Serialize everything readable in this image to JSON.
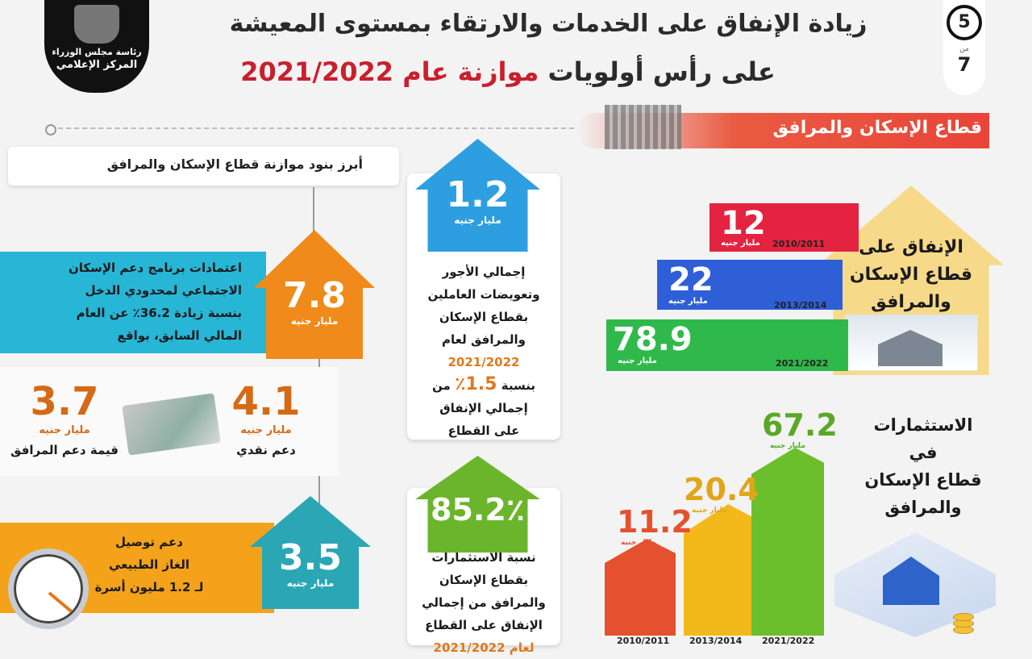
{
  "header": {
    "logo_line1": "رئاسة مجلس الوزراء",
    "logo_line2": "المركز الإعلامي",
    "title_line1": "زيادة الإنفاق على الخدمات والارتقاء بمستوى المعيشة",
    "title_line2_dark": "على رأس أولويات",
    "title_line2_red": "موازنة عام 2021/2022",
    "page_current": "5",
    "page_of": "من",
    "page_total": "7"
  },
  "sector": {
    "title": "قطاع الإسكان والمرافق"
  },
  "left_panel": {
    "heading": "أبرز بنود موازنة قطاع الإسكان والمرافق",
    "social_housing": {
      "value": "7.8",
      "unit": "مليار جنيه",
      "text_line1": "اعتمادات برنامج دعم الإسكان",
      "text_line2": "الاجتماعي لمحدودي الدخل",
      "text_line3": "بنسبة زيادة 36.2٪ عن العام",
      "text_line4": "المالي السابق، بواقع"
    },
    "cash_support": {
      "value": "4.1",
      "unit": "مليار جنيه",
      "caption": "دعم نقدي"
    },
    "utilities_support": {
      "value": "3.7",
      "unit": "مليار جنيه",
      "caption": "قيمة دعم المرافق"
    },
    "gas": {
      "value": "3.5",
      "unit": "مليار جنيه",
      "text_line1": "دعم توصيل",
      "text_line2": "الغاز الطبيعي",
      "text_line3": "لـ 1.2 مليون أسرة"
    }
  },
  "middle": {
    "wages": {
      "value": "1.2",
      "unit": "مليار جنيه",
      "line1": "إجمالي الأجور",
      "line2": "وتعويضات العاملين",
      "line3": "بقطاع الإسكان",
      "line4": "والمرافق لعام",
      "line5": "2021/2022",
      "line6_pre": "بنسبة",
      "line6_num": "1.5٪",
      "line6_post": "من",
      "line7": "إجمالي الإنفاق",
      "line8": "على القطاع"
    },
    "investments_share": {
      "value": "85.2٪",
      "line1": "نسبة الاستثمارات",
      "line2": "بقطاع الإسكان",
      "line3": "والمرافق من إجمالي",
      "line4": "الإنفاق على القطاع",
      "line5": "لعام 2021/2022"
    }
  },
  "spending": {
    "house_title_line1": "الإنفاق على",
    "house_title_line2": "قطاع الإسكان",
    "house_title_line3": "والمرافق",
    "unit": "مليار جنيه",
    "bars": [
      {
        "year": "2010/2011",
        "value": "12",
        "color": "#e3233f"
      },
      {
        "year": "2013/2014",
        "value": "22",
        "color": "#2f5fd6"
      },
      {
        "year": "2021/2022",
        "value": "78.9",
        "color": "#2fb94a"
      }
    ]
  },
  "investments": {
    "title_line1": "الاستثمارات",
    "title_line2": "في",
    "title_line3": "قطاع الإسكان",
    "title_line4": "والمرافق",
    "unit": "مليار جنيه",
    "buildings": [
      {
        "year": "2010/2011",
        "value": "11.2",
        "color": "#e5512e"
      },
      {
        "year": "2013/2014",
        "value": "20.4",
        "color": "#f3b91a"
      },
      {
        "year": "2021/2022",
        "value": "67.2",
        "color": "#6cbf2c"
      }
    ]
  }
}
